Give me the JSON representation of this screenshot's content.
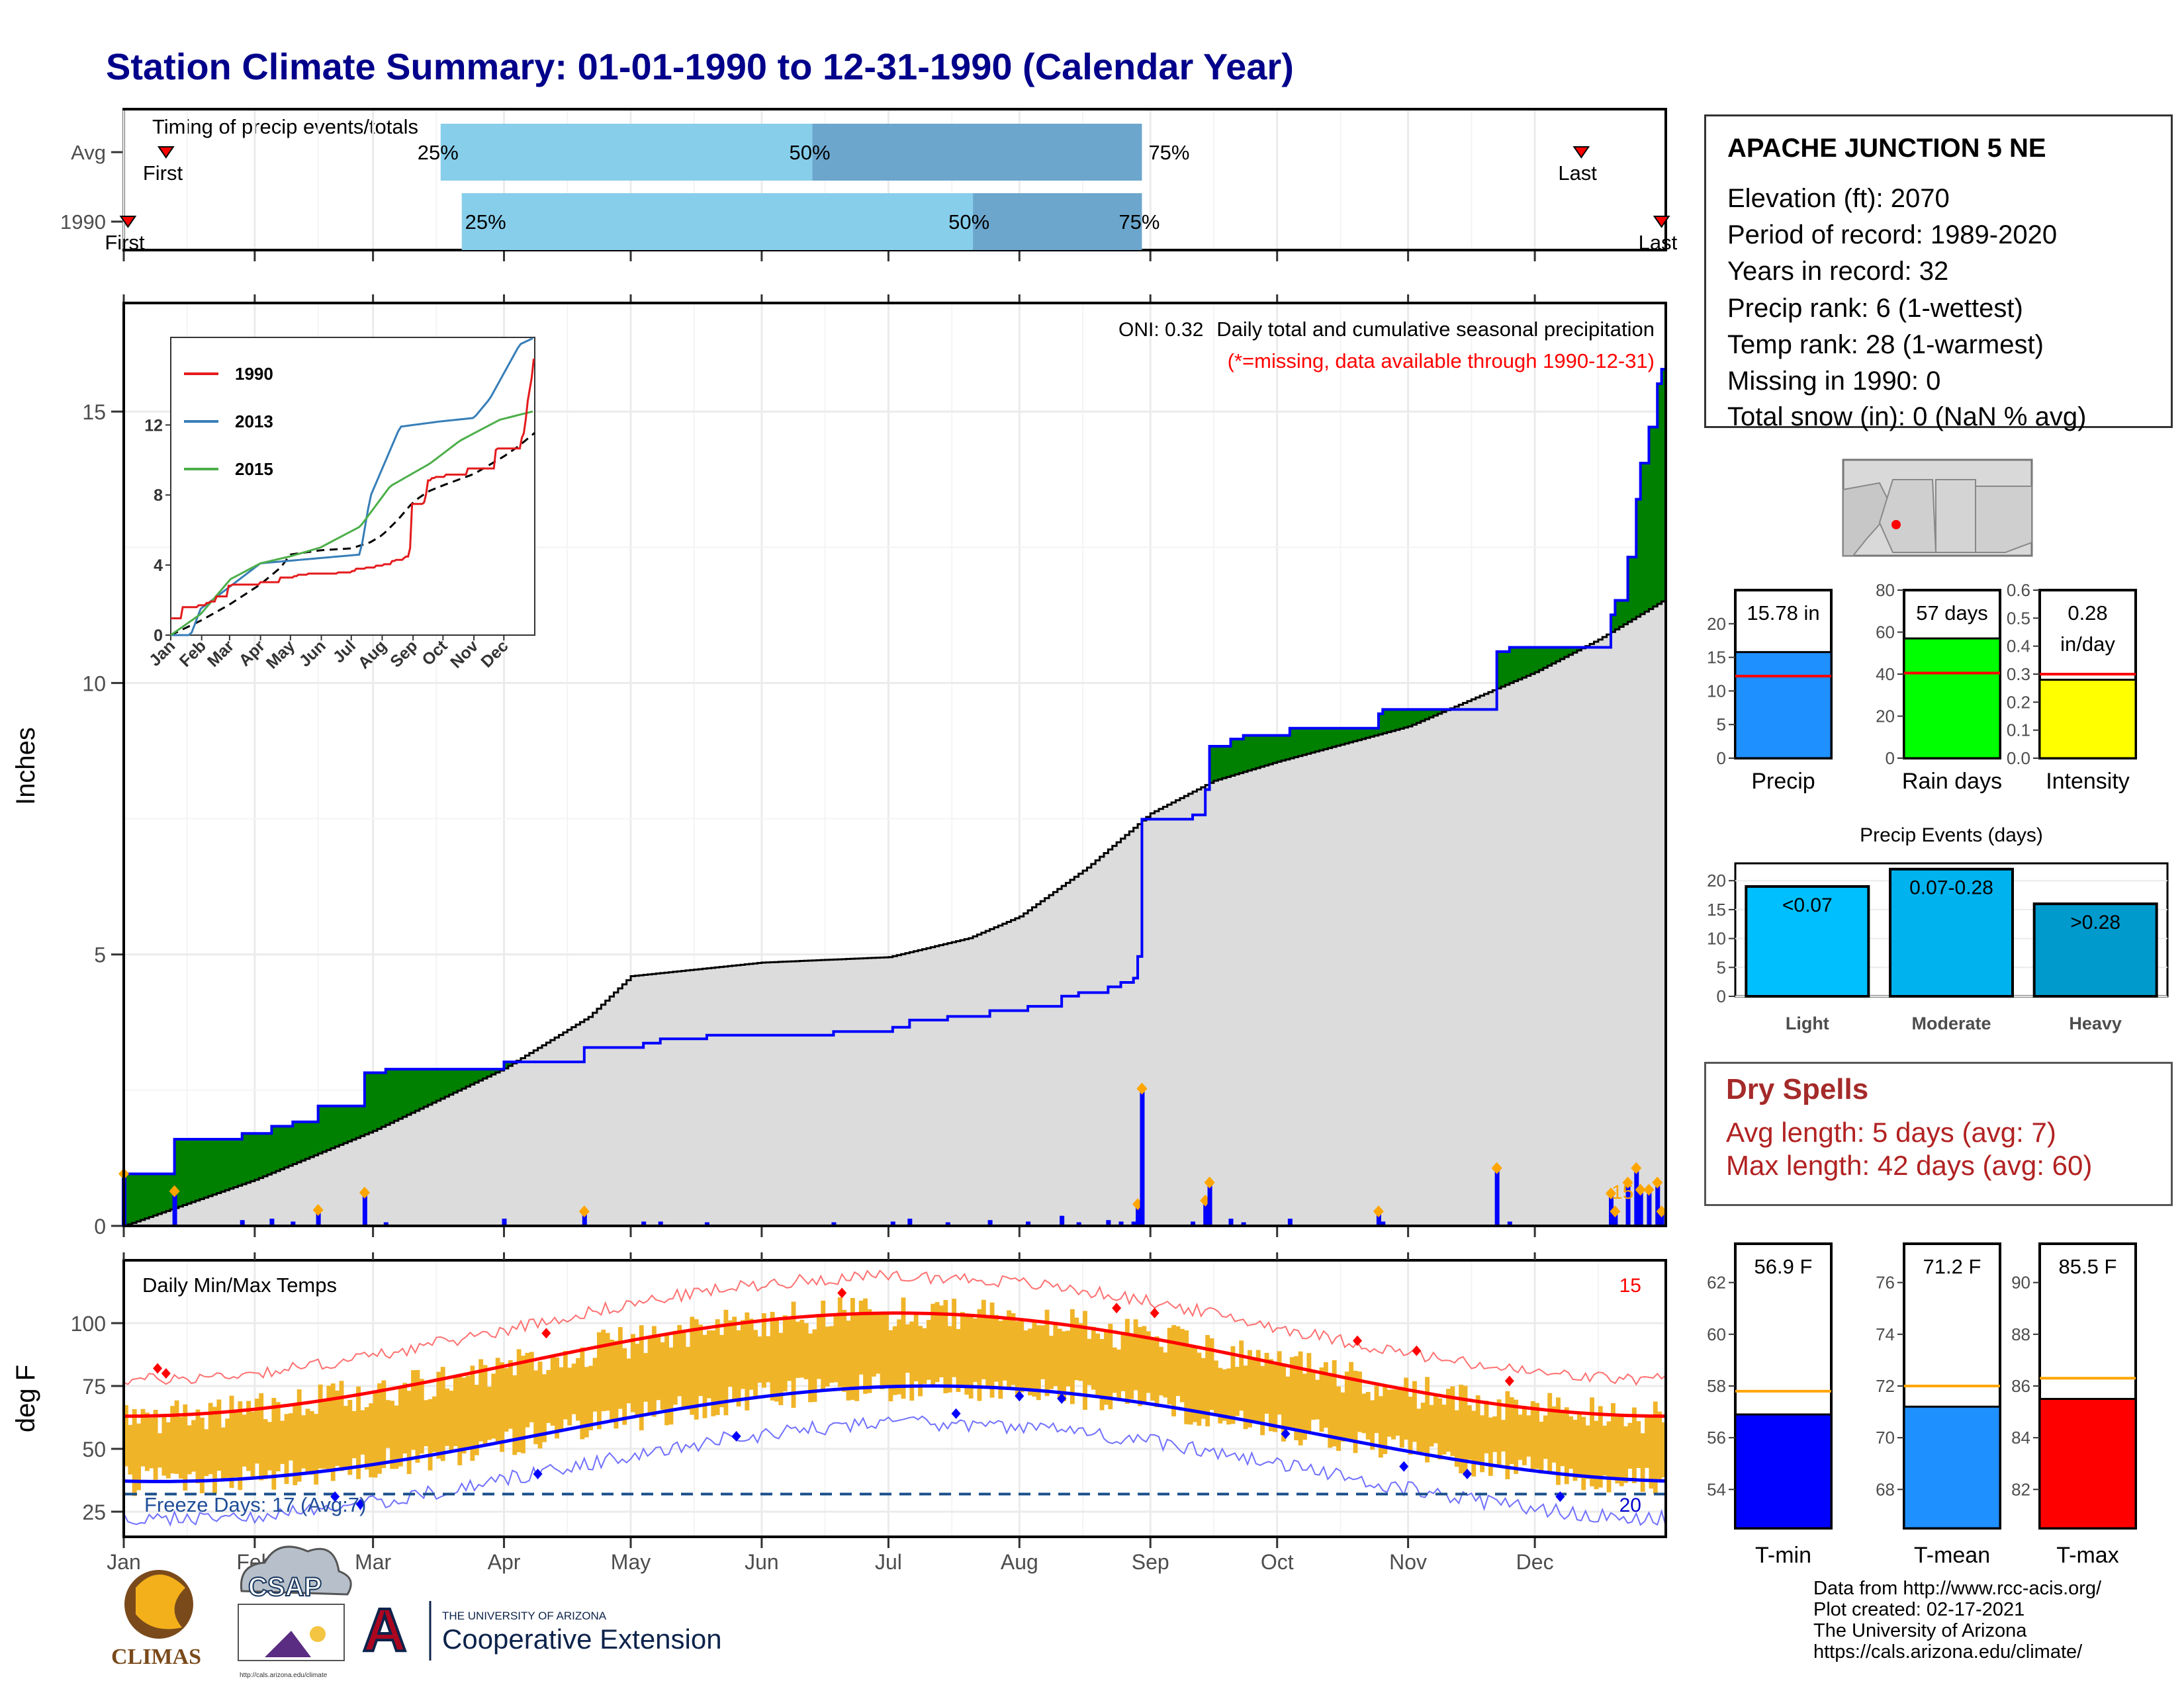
{
  "title": "Station Climate Summary: 01-01-1990 to 12-31-1990 (Calendar Year)",
  "timing_panel": {
    "label": "Timing of precip events/totals",
    "rows": [
      "Avg",
      "1990"
    ],
    "avg": {
      "first": 10,
      "q25": 75,
      "q50": 163,
      "q75": 241,
      "last": 345
    },
    "year": {
      "first": 1,
      "q25": 80,
      "q50": 201,
      "q75": 241,
      "last": 364
    },
    "first_label": "First",
    "last_label": "Last",
    "q25_label": "25%",
    "q50_label": "50%",
    "q75_label": "75%"
  },
  "months": [
    "Jan",
    "Feb",
    "Mar",
    "Apr",
    "May",
    "Jun",
    "Jul",
    "Aug",
    "Sep",
    "Oct",
    "Nov",
    "Dec"
  ],
  "month_starts": [
    0,
    31,
    59,
    90,
    120,
    151,
    181,
    212,
    243,
    273,
    304,
    334
  ],
  "precip_panel": {
    "ylabel": "Inches",
    "yticks": [
      0,
      5,
      10,
      15
    ],
    "ylim": [
      0,
      17.0
    ],
    "oni": "ONI: 0.32",
    "title": "Daily total and cumulative seasonal precipitation",
    "missing_note": "(*=missing, data available through 1990-12-31)",
    "count_label": "15",
    "colors": {
      "above": "#008000",
      "below": "#8b5a14",
      "avg_fill": "#dcdcdc",
      "cum_line": "#0000ff",
      "daily_bar": "#0000ff",
      "marker": "#ffa500",
      "count": "#ffa500"
    }
  },
  "inset": {
    "yticks": [
      0,
      4,
      8,
      12
    ],
    "months": [
      "Jan",
      "Feb",
      "Mar",
      "Apr",
      "May",
      "Jun",
      "Jul",
      "Aug",
      "Sep",
      "Oct",
      "Nov",
      "Dec"
    ],
    "legend": [
      {
        "name": "1990",
        "color": "#e41a1c"
      },
      {
        "name": "2013",
        "color": "#377eb8"
      },
      {
        "name": "2015",
        "color": "#4daf4a"
      }
    ]
  },
  "temp_panel": {
    "ylabel": "deg F",
    "label": "Daily Min/Max Temps",
    "yticks": [
      25,
      50,
      75,
      100
    ],
    "ylim": [
      15,
      125
    ],
    "freeze_label": "Freeze Days: 17 (Avg:7)",
    "count_max": "15",
    "count_min": "20",
    "freeze_line": 32,
    "colors": {
      "bar": "#f0b428",
      "max_avg": "#ff0000",
      "min_avg": "#0000ff",
      "record_high": "#ff7070",
      "record_low": "#7070ff",
      "freeze": "#1a4f8b",
      "freeze_text": "#1f4e99"
    }
  },
  "station": {
    "name": "APACHE JUNCTION 5 NE",
    "lines": [
      "Elevation (ft): 2070",
      "Period of record: 1989-2020",
      "Years in record: 32",
      "Precip rank: 6 (1-wettest)",
      "Temp rank: 28 (1-warmest)",
      "Missing in 1990: 0",
      "Total snow (in): 0 (NaN % avg)"
    ]
  },
  "gauges": [
    {
      "label": "Precip",
      "value_text": "15.78 in",
      "value": 15.78,
      "avg": 12.2,
      "ylim": [
        0,
        25
      ],
      "yticks": [
        "0",
        "5",
        "10",
        "15",
        "20"
      ],
      "tickvals": [
        0,
        5,
        10,
        15,
        20
      ],
      "color": "#1e90ff"
    },
    {
      "label": "Rain days",
      "value_text": "57 days",
      "value": 57,
      "avg": 40.5,
      "ylim": [
        0,
        80
      ],
      "yticks": [
        "0",
        "20",
        "40",
        "60",
        "80"
      ],
      "tickvals": [
        0,
        20,
        40,
        60,
        80
      ],
      "color": "#00ff00"
    },
    {
      "label": "Intensity",
      "value_text": "0.28 in/day",
      "value_line1": "0.28",
      "value_line2": "in/day",
      "value": 0.28,
      "avg": 0.3,
      "ylim": [
        0,
        0.6
      ],
      "yticks": [
        "0.0",
        "0.1",
        "0.2",
        "0.3",
        "0.4",
        "0.5",
        "0.6"
      ],
      "tickvals": [
        0,
        0.1,
        0.2,
        0.3,
        0.4,
        0.5,
        0.6
      ],
      "color": "#ffff00"
    }
  ],
  "precip_events": {
    "title": "Precip Events (days)",
    "yticks": [
      0,
      5,
      10,
      15,
      20
    ],
    "categories": [
      "Light",
      "Moderate",
      "Heavy"
    ],
    "bar_labels": [
      "<0.07",
      "0.07-0.28",
      ">0.28"
    ],
    "values": [
      19,
      22,
      16
    ],
    "colors": [
      "#00bfff",
      "#00b2ee",
      "#009acd"
    ]
  },
  "dry_spells": {
    "title": "Dry Spells",
    "avg_line": "Avg length: 5 days (avg: 7)",
    "max_line": "Max length: 42 days (avg: 60)"
  },
  "temp_gauges": [
    {
      "label": "T-min",
      "value_text": "56.9 F",
      "value": 56.9,
      "avg": 57.8,
      "ylim": [
        52.5,
        63.5
      ],
      "tickvals": [
        54,
        56,
        58,
        60,
        62
      ],
      "color": "#0000ff"
    },
    {
      "label": "T-mean",
      "value_text": "71.2 F",
      "value": 71.2,
      "avg": 72.0,
      "ylim": [
        66.5,
        77.5
      ],
      "tickvals": [
        68,
        70,
        72,
        74,
        76
      ],
      "color": "#1e90ff"
    },
    {
      "label": "T-max",
      "value_text": "85.5 F",
      "value": 85.5,
      "avg": 86.3,
      "ylim": [
        80.5,
        91.5
      ],
      "tickvals": [
        82,
        84,
        86,
        88,
        90
      ],
      "color": "#ff0000"
    }
  ],
  "credits": [
    "Data from http://www.rcc-acis.org/",
    "Plot created: 02-17-2021",
    "The University of Arizona",
    "https://cals.arizona.edu/climate/"
  ],
  "logos": {
    "climas": "CLIMAS",
    "csap": "CSAP",
    "csap_url": "http://cals.arizona.edu/climate",
    "ua_small": "THE UNIVERSITY OF ARIZONA",
    "ua_large": "Cooperative Extension",
    "ua_mark": "A"
  },
  "chart_data": [
    {
      "type": "area",
      "title": "Daily total and cumulative seasonal precipitation",
      "ylabel": "Inches",
      "ylim": [
        0,
        17.0
      ],
      "series": [
        {
          "name": "1990",
          "events": [
            [
              0,
              0.72
            ],
            [
              12,
              0.48
            ],
            [
              28,
              0.08
            ],
            [
              35,
              0.1
            ],
            [
              40,
              0.06
            ],
            [
              46,
              0.22
            ],
            [
              57,
              0.46
            ],
            [
              62,
              0.05
            ],
            [
              90,
              0.1
            ],
            [
              109,
              0.2
            ],
            [
              123,
              0.06
            ],
            [
              127,
              0.06
            ],
            [
              138,
              0.05
            ],
            [
              168,
              0.05
            ],
            [
              182,
              0.06
            ],
            [
              186,
              0.1
            ],
            [
              195,
              0.05
            ],
            [
              205,
              0.08
            ],
            [
              214,
              0.06
            ],
            [
              222,
              0.14
            ],
            [
              226,
              0.05
            ],
            [
              233,
              0.08
            ],
            [
              236,
              0.06
            ],
            [
              239,
              0.06
            ],
            [
              240,
              0.3
            ],
            [
              241,
              1.9
            ],
            [
              253,
              0.06
            ],
            [
              256,
              0.35
            ],
            [
              257,
              0.6
            ],
            [
              262,
              0.1
            ],
            [
              265,
              0.05
            ],
            [
              276,
              0.1
            ],
            [
              297,
              0.2
            ],
            [
              298,
              0.06
            ],
            [
              325,
              0.8
            ],
            [
              328,
              0.06
            ],
            [
              361,
              0.5
            ],
            [
              352,
              0.45
            ],
            [
              353,
              0.2
            ],
            [
              356,
              0.6
            ],
            [
              358,
              0.8
            ],
            [
              359,
              0.5
            ],
            [
              363,
              0.6
            ],
            [
              364,
              0.2
            ]
          ]
        }
      ]
    },
    {
      "type": "bar",
      "title": "Precip Events (days)",
      "categories": [
        "Light",
        "Moderate",
        "Heavy"
      ],
      "values": [
        19,
        22,
        16
      ]
    }
  ]
}
